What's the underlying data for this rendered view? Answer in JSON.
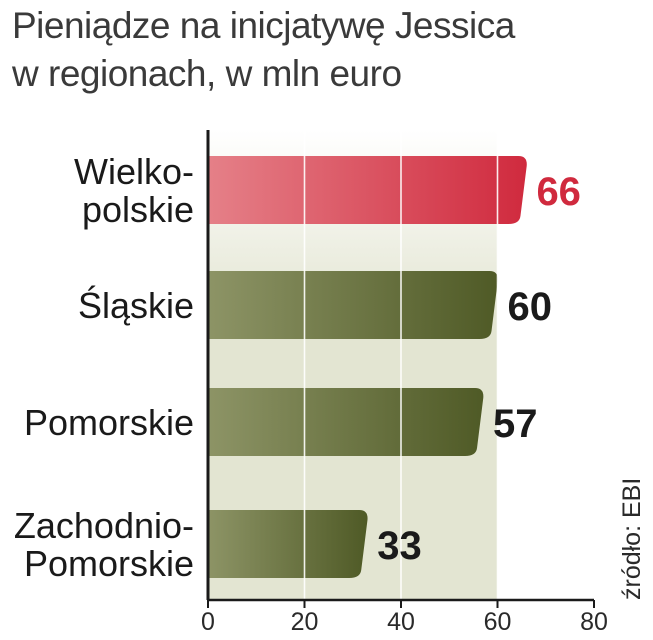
{
  "title": {
    "line1": "Pieniądze na inicjatywę Jessica",
    "line2": "w regionach, w mln euro"
  },
  "source": "źródło: EBI",
  "colors": {
    "highlight": "#d02a3e",
    "highlight_light": "#e58088",
    "bar_dark": "#4f5a26",
    "bar_light": "#8d9466",
    "panel": "#e3e5d2",
    "highlight_value": "#d02a3e",
    "value": "#1a1a1a",
    "axis": "#1a1a1a"
  },
  "chart_data": {
    "type": "bar",
    "orientation": "horizontal",
    "categories": [
      [
        "Wielko-",
        "polskie"
      ],
      [
        "Śląskie"
      ],
      [
        "Pomorskie"
      ],
      [
        "Zachodnio-",
        "Pomorskie"
      ]
    ],
    "values": [
      66,
      60,
      57,
      33
    ],
    "value_labels": [
      "66",
      "60",
      "57",
      "33"
    ],
    "highlight_index": 0,
    "xlim": [
      0,
      80
    ],
    "xticks": [
      0,
      20,
      40,
      60,
      80
    ],
    "xtick_labels": [
      "0",
      "20",
      "40",
      "60",
      "80"
    ],
    "grid": true,
    "xlabel": "",
    "ylabel": ""
  }
}
